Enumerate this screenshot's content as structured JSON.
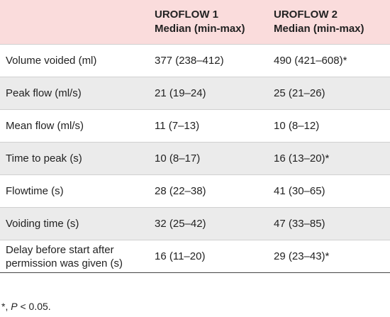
{
  "table": {
    "columns": [
      {
        "title": "UROFLOW 1",
        "subtitle": "Median (min-max)"
      },
      {
        "title": "UROFLOW 2",
        "subtitle": "Median (min-max)"
      }
    ],
    "rows": [
      [
        "Volume voided (ml)",
        "377 (238–412)",
        "490 (421–608)*"
      ],
      [
        "Peak flow (ml/s)",
        "21 (19–24)",
        "25 (21–26)"
      ],
      [
        "Mean flow (ml/s)",
        "11 (7–13)",
        "10 (8–12)"
      ],
      [
        "Time to peak (s)",
        "10 (8–17)",
        "16 (13–20)*"
      ],
      [
        "Flowtime (s)",
        "28 (22–38)",
        "41 (30–65)"
      ],
      [
        "Voiding time (s)",
        "32 (25–42)",
        "47 (33–85)"
      ],
      [
        "Delay before start after permission was given (s)",
        "16 (11–20)",
        "29 (23–43)*"
      ]
    ]
  },
  "footnote": {
    "prefix": "*, ",
    "italic": "P",
    "suffix": " < 0.05."
  }
}
